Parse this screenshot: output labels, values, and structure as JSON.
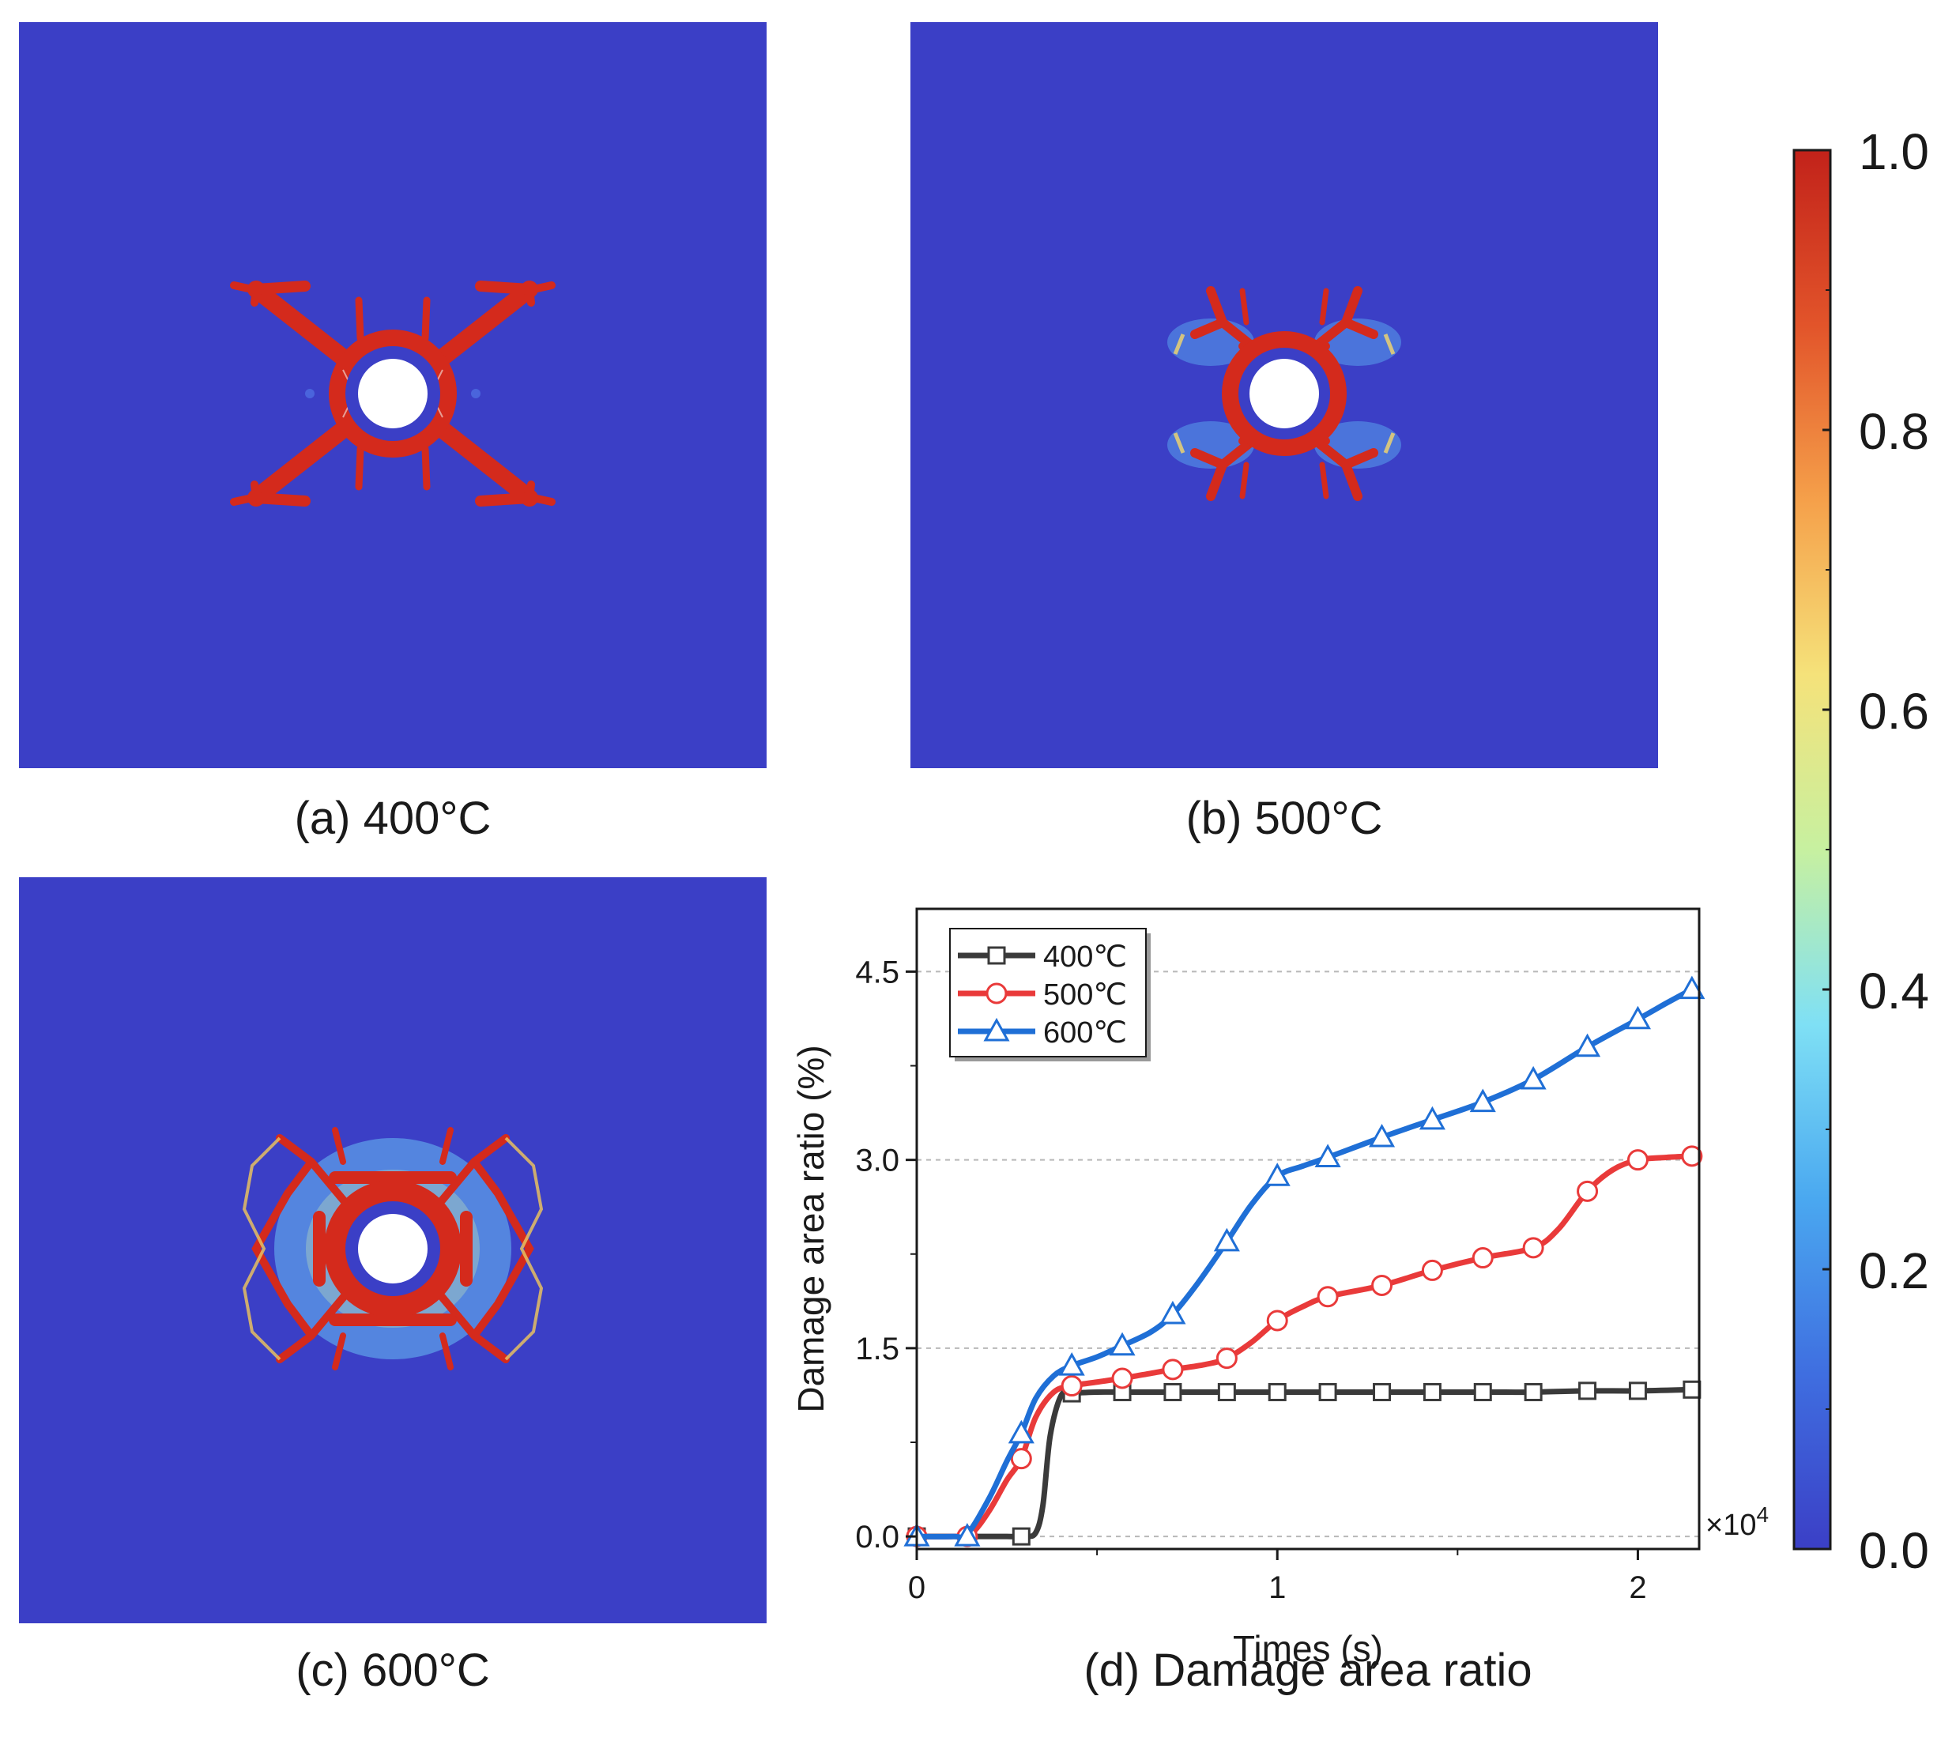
{
  "colors": {
    "field": "#3b3fc6",
    "crack": "#d42a1c",
    "hole": "#ffffff",
    "s400": "#3a3a3a",
    "s500": "#e93a3a",
    "s600": "#1f6fd6",
    "colormap": [
      "#3b3fc6",
      "#3f6ee0",
      "#4aa8f0",
      "#7fe0f5",
      "#c7f0a0",
      "#f5e27a",
      "#f5a04a",
      "#e2542a",
      "#c2221a"
    ]
  },
  "panels": {
    "a": {
      "caption": "(a) 400°C"
    },
    "b": {
      "caption": "(b) 500°C"
    },
    "c": {
      "caption": "(c) 600°C"
    },
    "d": {
      "caption": "(d) Damage area ratio"
    }
  },
  "colorbar": {
    "ticks": [
      "1.0",
      "0.8",
      "0.6",
      "0.4",
      "0.2",
      "0.0"
    ],
    "min": 0,
    "max": 1
  },
  "chart_data": {
    "type": "line",
    "title": "(d) Damage area ratio",
    "xlabel": "Times (s)",
    "ylabel": "Damage area ratio (%)",
    "x_multiplier_label": "×10",
    "x_multiplier_exp": "4",
    "xlim": [
      0,
      2.17
    ],
    "ylim": [
      -0.1,
      5.0
    ],
    "xticks": [
      0,
      1,
      2
    ],
    "xtick_labels": [
      "0",
      "1",
      "2"
    ],
    "yticks": [
      0,
      1.5,
      3,
      4.5
    ],
    "ytick_labels": [
      "0.0",
      "1.5",
      "3.0",
      "4.5"
    ],
    "grid": "horizontal-dashed",
    "legend_position": "top-left",
    "series": [
      {
        "name": "400℃",
        "marker": "square",
        "x": [
          0,
          0.05,
          0.1,
          0.15,
          0.2,
          0.25,
          0.3,
          0.33,
          0.35,
          0.37,
          0.4,
          0.43,
          0.5,
          0.57,
          0.7,
          0.85,
          1.0,
          1.14,
          1.29,
          1.43,
          1.57,
          1.71,
          1.86,
          2.0,
          2.15
        ],
        "y": [
          0,
          0,
          0,
          0,
          0,
          0,
          0,
          0.03,
          0.25,
          0.8,
          1.12,
          1.14,
          1.15,
          1.15,
          1.15,
          1.15,
          1.15,
          1.15,
          1.15,
          1.15,
          1.15,
          1.15,
          1.16,
          1.16,
          1.17
        ],
        "markers_x": [
          0,
          0.29,
          0.43,
          0.57,
          0.71,
          0.86,
          1.0,
          1.14,
          1.29,
          1.43,
          1.57,
          1.71,
          1.86,
          2.0,
          2.15
        ],
        "markers_y": [
          0,
          0,
          1.14,
          1.15,
          1.15,
          1.15,
          1.15,
          1.15,
          1.15,
          1.15,
          1.15,
          1.15,
          1.16,
          1.16,
          1.17
        ]
      },
      {
        "name": "500℃",
        "marker": "circle",
        "x": [
          0,
          0.1,
          0.15,
          0.2,
          0.25,
          0.29,
          0.33,
          0.38,
          0.43,
          0.5,
          0.57,
          0.65,
          0.71,
          0.8,
          0.86,
          0.93,
          1.0,
          1.07,
          1.14,
          1.29,
          1.43,
          1.57,
          1.71,
          1.78,
          1.86,
          1.93,
          2.0,
          2.08,
          2.15
        ],
        "y": [
          0,
          0,
          0.02,
          0.2,
          0.45,
          0.62,
          0.95,
          1.15,
          1.2,
          1.23,
          1.26,
          1.3,
          1.33,
          1.37,
          1.42,
          1.55,
          1.72,
          1.83,
          1.91,
          2.0,
          2.12,
          2.22,
          2.3,
          2.45,
          2.75,
          2.92,
          3.0,
          3.02,
          3.03
        ],
        "markers_x": [
          0,
          0.14,
          0.29,
          0.43,
          0.57,
          0.71,
          0.86,
          1.0,
          1.14,
          1.29,
          1.43,
          1.57,
          1.71,
          1.86,
          2.0,
          2.15
        ],
        "markers_y": [
          0,
          0,
          0.62,
          1.2,
          1.26,
          1.33,
          1.42,
          1.72,
          1.91,
          2.0,
          2.12,
          2.22,
          2.3,
          2.75,
          3.0,
          3.03
        ]
      },
      {
        "name": "600℃",
        "marker": "triangle",
        "x": [
          0,
          0.1,
          0.14,
          0.2,
          0.25,
          0.29,
          0.33,
          0.38,
          0.43,
          0.5,
          0.57,
          0.65,
          0.71,
          0.78,
          0.86,
          0.93,
          1.0,
          1.07,
          1.14,
          1.29,
          1.43,
          1.57,
          1.71,
          1.86,
          2.0,
          2.08,
          2.15
        ],
        "y": [
          0,
          0,
          0.02,
          0.3,
          0.6,
          0.82,
          1.1,
          1.28,
          1.36,
          1.43,
          1.52,
          1.63,
          1.77,
          2.02,
          2.35,
          2.65,
          2.87,
          2.95,
          3.02,
          3.18,
          3.32,
          3.46,
          3.64,
          3.9,
          4.12,
          4.25,
          4.36
        ],
        "markers_x": [
          0,
          0.14,
          0.29,
          0.43,
          0.57,
          0.71,
          0.86,
          1.0,
          1.14,
          1.29,
          1.43,
          1.57,
          1.71,
          1.86,
          2.0,
          2.15
        ],
        "markers_y": [
          0,
          0,
          0.82,
          1.36,
          1.52,
          1.77,
          2.35,
          2.87,
          3.02,
          3.18,
          3.32,
          3.46,
          3.64,
          3.9,
          4.12,
          4.36
        ]
      }
    ]
  }
}
